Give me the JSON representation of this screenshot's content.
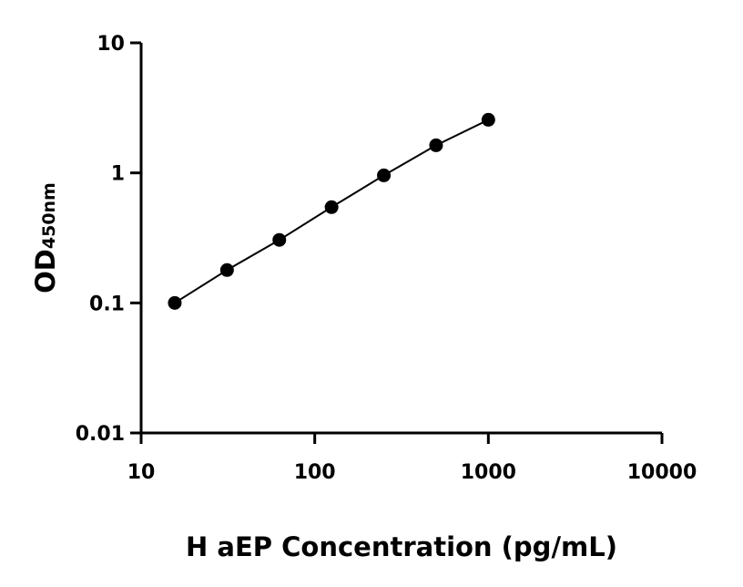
{
  "chart_data": {
    "type": "scatter",
    "x_label": "H aEP Concentration (pg/mL)",
    "y_label": "OD",
    "y_label_subscript": "450nm",
    "xscale": "log",
    "yscale": "log",
    "xlim": [
      10,
      10000
    ],
    "ylim": [
      0.01,
      10
    ],
    "xticks": [
      10,
      100,
      1000,
      10000
    ],
    "yticks": [
      0.01,
      0.1,
      1,
      10
    ],
    "line": true,
    "series": [
      {
        "color": "#000000",
        "x": [
          15.625,
          31.25,
          62.5,
          125,
          250,
          500,
          1000
        ],
        "values": [
          0.1,
          0.179,
          0.305,
          0.545,
          0.957,
          1.63,
          2.56
        ]
      }
    ]
  }
}
